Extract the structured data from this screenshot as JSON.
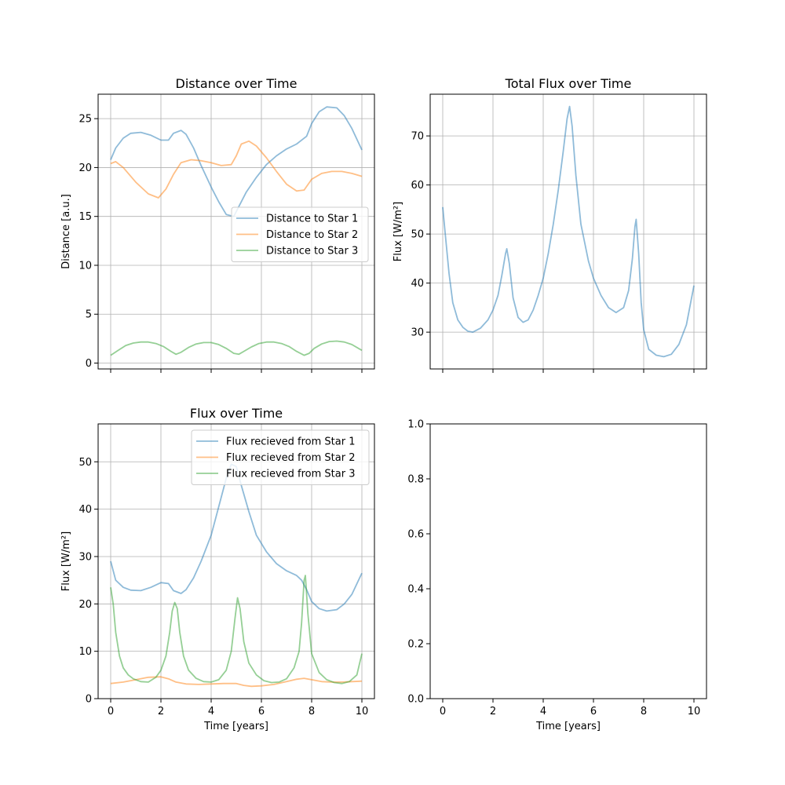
{
  "chart_data": [
    {
      "type": "line",
      "title": "Distance over Time",
      "xlabel": "",
      "ylabel": "Distance [a.u.]",
      "xlim": [
        -0.5,
        10.5
      ],
      "ylim": [
        -0.6,
        27.5
      ],
      "xticks": [
        0,
        2,
        4,
        6,
        8,
        10
      ],
      "yticks": [
        0,
        5,
        10,
        15,
        20,
        25
      ],
      "grid": true,
      "legend_position": "center-right",
      "series": [
        {
          "name": "Distance to Star 1",
          "color": "#1f77b4",
          "x": [
            0,
            0.2,
            0.5,
            0.8,
            1.2,
            1.6,
            2.0,
            2.3,
            2.5,
            2.8,
            3.0,
            3.3,
            3.6,
            4.0,
            4.3,
            4.6,
            4.9,
            5.1,
            5.4,
            5.8,
            6.2,
            6.6,
            7.0,
            7.4,
            7.8,
            8.0,
            8.3,
            8.6,
            9.0,
            9.3,
            9.6,
            10.0
          ],
          "y": [
            20.8,
            22.0,
            23.0,
            23.5,
            23.6,
            23.3,
            22.8,
            22.8,
            23.5,
            23.8,
            23.4,
            22.0,
            20.2,
            18.0,
            16.5,
            15.2,
            15.0,
            16.0,
            17.5,
            19.0,
            20.3,
            21.2,
            21.9,
            22.4,
            23.2,
            24.5,
            25.7,
            26.2,
            26.1,
            25.3,
            24.0,
            21.8
          ]
        },
        {
          "name": "Distance to Star 2",
          "color": "#ff7f0e",
          "x": [
            0,
            0.2,
            0.5,
            1.0,
            1.5,
            1.9,
            2.2,
            2.5,
            2.8,
            3.2,
            3.6,
            4.0,
            4.4,
            4.8,
            5.0,
            5.2,
            5.5,
            5.8,
            6.2,
            6.6,
            7.0,
            7.4,
            7.7,
            8.0,
            8.4,
            8.8,
            9.2,
            9.6,
            10.0
          ],
          "y": [
            20.4,
            20.6,
            20.0,
            18.5,
            17.3,
            16.9,
            17.8,
            19.3,
            20.5,
            20.8,
            20.7,
            20.5,
            20.2,
            20.3,
            21.2,
            22.4,
            22.7,
            22.2,
            21.0,
            19.6,
            18.3,
            17.6,
            17.7,
            18.8,
            19.4,
            19.6,
            19.6,
            19.4,
            19.1
          ]
        },
        {
          "name": "Distance to Star 3",
          "color": "#2ca02c",
          "x": [
            0,
            0.3,
            0.6,
            0.9,
            1.2,
            1.5,
            1.8,
            2.1,
            2.4,
            2.6,
            2.8,
            3.1,
            3.4,
            3.7,
            4.0,
            4.3,
            4.6,
            4.9,
            5.1,
            5.3,
            5.6,
            5.9,
            6.2,
            6.5,
            6.8,
            7.1,
            7.4,
            7.7,
            7.9,
            8.1,
            8.4,
            8.7,
            9.0,
            9.3,
            9.6,
            10.0
          ],
          "y": [
            0.8,
            1.3,
            1.8,
            2.05,
            2.15,
            2.15,
            2.0,
            1.7,
            1.2,
            0.9,
            1.1,
            1.6,
            1.95,
            2.1,
            2.1,
            1.9,
            1.5,
            1.0,
            0.9,
            1.2,
            1.65,
            2.0,
            2.15,
            2.15,
            2.0,
            1.7,
            1.2,
            0.8,
            1.0,
            1.5,
            1.95,
            2.2,
            2.25,
            2.15,
            1.9,
            1.3
          ]
        }
      ]
    },
    {
      "type": "line",
      "title": "Total Flux over Time",
      "xlabel": "",
      "ylabel": "Flux [W/m²]",
      "xlim": [
        -0.5,
        10.5
      ],
      "ylim": [
        22.5,
        78.5
      ],
      "xticks": [
        0,
        2,
        4,
        6,
        8,
        10
      ],
      "yticks": [
        30,
        40,
        50,
        60,
        70
      ],
      "grid": true,
      "series": [
        {
          "name": "",
          "color": "#1f77b4",
          "x": [
            0,
            0.1,
            0.25,
            0.4,
            0.6,
            0.8,
            1.0,
            1.2,
            1.5,
            1.8,
            2.0,
            2.2,
            2.35,
            2.5,
            2.55,
            2.65,
            2.8,
            3.0,
            3.2,
            3.4,
            3.6,
            3.8,
            4.0,
            4.2,
            4.4,
            4.6,
            4.8,
            4.95,
            5.05,
            5.15,
            5.3,
            5.5,
            5.8,
            6.0,
            6.3,
            6.6,
            6.9,
            7.2,
            7.4,
            7.55,
            7.65,
            7.7,
            7.8,
            7.9,
            8.0,
            8.2,
            8.5,
            8.8,
            9.1,
            9.4,
            9.7,
            10.0
          ],
          "y": [
            55.5,
            50.0,
            42.0,
            36.0,
            32.5,
            31.0,
            30.2,
            30.0,
            30.8,
            32.5,
            34.5,
            37.5,
            41.5,
            46.0,
            47.0,
            44.0,
            37.0,
            33.0,
            32.0,
            32.5,
            34.5,
            37.5,
            41.0,
            46.0,
            52.0,
            59.0,
            67.0,
            73.5,
            76.0,
            72.0,
            62.0,
            52.0,
            44.5,
            41.0,
            37.5,
            35.0,
            34.0,
            35.0,
            38.5,
            45.0,
            51.5,
            53.0,
            46.0,
            36.0,
            30.5,
            26.5,
            25.3,
            25.0,
            25.5,
            27.5,
            31.5,
            39.5
          ]
        }
      ]
    },
    {
      "type": "line",
      "title": "Flux over Time",
      "xlabel": "Time [years]",
      "ylabel": "Flux [W/m²]",
      "xlim": [
        -0.5,
        10.5
      ],
      "ylim": [
        0,
        58
      ],
      "xticks": [
        0,
        2,
        4,
        6,
        8,
        10
      ],
      "yticks": [
        0,
        10,
        20,
        30,
        40,
        50
      ],
      "grid": true,
      "legend_position": "upper-right",
      "series": [
        {
          "name": "Flux recieved from Star 1",
          "color": "#1f77b4",
          "x": [
            0,
            0.2,
            0.5,
            0.8,
            1.2,
            1.6,
            2.0,
            2.3,
            2.5,
            2.8,
            3.0,
            3.3,
            3.6,
            4.0,
            4.3,
            4.6,
            4.8,
            5.0,
            5.2,
            5.5,
            5.8,
            6.2,
            6.6,
            7.0,
            7.4,
            7.6,
            7.8,
            8.0,
            8.3,
            8.6,
            9.0,
            9.3,
            9.6,
            10.0
          ],
          "y": [
            29.0,
            25.0,
            23.5,
            22.9,
            22.8,
            23.5,
            24.5,
            24.3,
            22.8,
            22.2,
            23.0,
            25.5,
            29.0,
            34.5,
            40.5,
            46.5,
            49.5,
            49.0,
            45.0,
            39.5,
            34.5,
            31.0,
            28.5,
            27.0,
            26.0,
            25.0,
            23.0,
            20.5,
            19.0,
            18.5,
            18.8,
            20.0,
            22.0,
            26.5
          ]
        },
        {
          "name": "Flux recieved from Star 2",
          "color": "#ff7f0e",
          "x": [
            0,
            0.5,
            1.0,
            1.5,
            2.0,
            2.3,
            2.6,
            3.0,
            3.5,
            4.0,
            4.5,
            5.0,
            5.3,
            5.6,
            6.0,
            6.5,
            7.0,
            7.4,
            7.7,
            8.0,
            8.4,
            8.8,
            9.2,
            9.6,
            10.0
          ],
          "y": [
            3.2,
            3.5,
            4.0,
            4.5,
            4.6,
            4.2,
            3.5,
            3.1,
            3.0,
            3.1,
            3.2,
            3.2,
            2.8,
            2.6,
            2.7,
            3.0,
            3.6,
            4.1,
            4.3,
            4.0,
            3.6,
            3.5,
            3.5,
            3.6,
            3.7
          ]
        },
        {
          "name": "Flux recieved from Star 3",
          "color": "#2ca02c",
          "x": [
            0,
            0.1,
            0.2,
            0.35,
            0.5,
            0.7,
            0.9,
            1.2,
            1.5,
            1.8,
            2.0,
            2.2,
            2.35,
            2.45,
            2.55,
            2.65,
            2.75,
            2.9,
            3.1,
            3.4,
            3.7,
            4.0,
            4.3,
            4.6,
            4.8,
            4.95,
            5.05,
            5.15,
            5.3,
            5.5,
            5.8,
            6.1,
            6.4,
            6.7,
            7.0,
            7.3,
            7.5,
            7.6,
            7.7,
            7.75,
            7.85,
            8.0,
            8.3,
            8.6,
            8.9,
            9.2,
            9.5,
            9.8,
            10.0
          ],
          "y": [
            23.5,
            20.0,
            14.0,
            9.0,
            6.5,
            5.0,
            4.2,
            3.6,
            3.5,
            4.5,
            6.0,
            9.0,
            14.0,
            18.5,
            20.3,
            19.0,
            14.0,
            9.0,
            6.0,
            4.3,
            3.6,
            3.5,
            4.0,
            6.0,
            10.0,
            17.0,
            21.3,
            19.0,
            12.0,
            7.5,
            5.0,
            3.8,
            3.4,
            3.5,
            4.2,
            6.5,
            10.0,
            16.0,
            25.0,
            26.0,
            18.0,
            9.5,
            5.5,
            4.0,
            3.4,
            3.2,
            3.6,
            5.0,
            9.5
          ]
        }
      ]
    },
    {
      "type": "line",
      "title": "",
      "xlabel": "Time [years]",
      "ylabel": "",
      "xlim": [
        -0.5,
        10.5
      ],
      "ylim": [
        0,
        1
      ],
      "xticks": [
        0,
        2,
        4,
        6,
        8,
        10
      ],
      "yticks": [
        0.0,
        0.2,
        0.4,
        0.6,
        0.8,
        1.0
      ],
      "ytick_labels": [
        "0.0",
        "0.2",
        "0.4",
        "0.6",
        "0.8",
        "1.0"
      ],
      "grid": false,
      "series": []
    }
  ]
}
